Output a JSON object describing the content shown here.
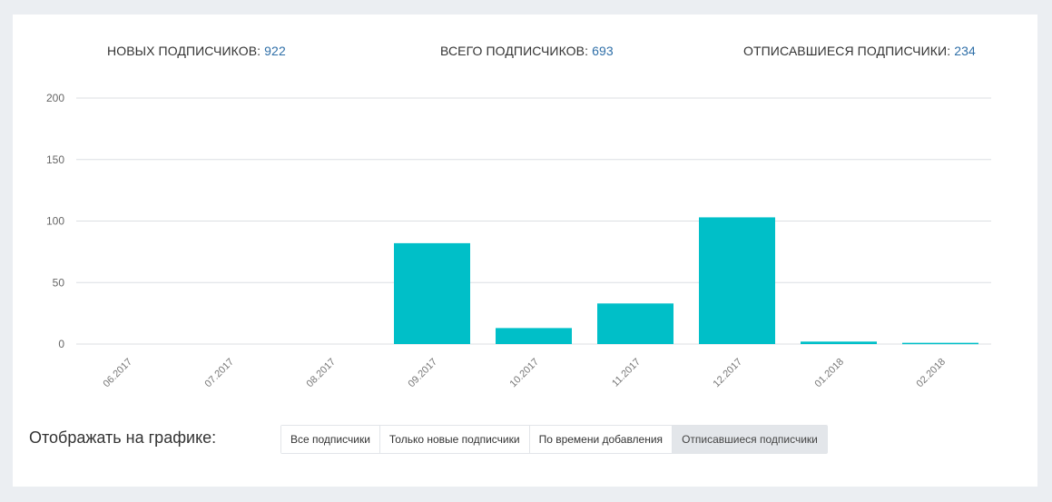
{
  "stats": {
    "new_label": "НОВЫХ ПОДПИСЧИКОВ:",
    "new_value": "922",
    "total_label": "ВСЕГО ПОДПИСЧИКОВ:",
    "total_value": "693",
    "unsub_label": "ОТПИСАВШИЕСЯ ПОДПИСЧИКИ:",
    "unsub_value": "234"
  },
  "filter": {
    "label": "Отображать на графике:",
    "buttons": [
      "Все подписчики",
      "Только новые подписчики",
      "По времени добавления",
      "Отписавшиеся подписчики"
    ],
    "active_index": 3
  },
  "chart_data": {
    "type": "bar",
    "categories": [
      "06.2017",
      "07.2017",
      "08.2017",
      "09.2017",
      "10.2017",
      "11.2017",
      "12.2017",
      "01.2018",
      "02.2018"
    ],
    "values": [
      0,
      0,
      0,
      82,
      13,
      33,
      103,
      2,
      1
    ],
    "ylim": [
      0,
      200
    ],
    "yticks": [
      "0",
      "50",
      "100",
      "150",
      "200"
    ],
    "grid": true,
    "bar_color": "#00bfc8",
    "title": "",
    "xlabel": "",
    "ylabel": ""
  }
}
